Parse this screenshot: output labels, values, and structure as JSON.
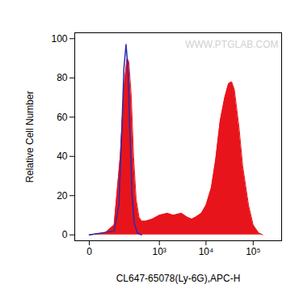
{
  "chart_data": {
    "type": "area",
    "x_label": "CL647-65078(Ly-6G),APC-H",
    "y_label": "Relative Cell Number",
    "xlim": [
      -35,
      400000
    ],
    "xticks": [
      0,
      {
        "value": 1000,
        "label": "10³"
      },
      {
        "value": 10000,
        "label": "10⁴"
      },
      {
        "value": 100000,
        "label": "10⁵"
      }
    ],
    "ylim": [
      -3,
      103
    ],
    "yticks": [
      0,
      20,
      40,
      60,
      80,
      100
    ],
    "grid": false,
    "annotations": [
      {
        "text": "WWW.PTGLAB.COM"
      }
    ],
    "series": [
      {
        "type": "area",
        "color": "#e8141b",
        "x": [
          0,
          40,
          80,
          120,
          150,
          180,
          200,
          230,
          260,
          300,
          350,
          400,
          500,
          700,
          1000,
          1500,
          2000,
          3000,
          4000,
          5000,
          6000,
          8000,
          10000,
          13000,
          16000,
          20000,
          25000,
          30000,
          35000,
          40000,
          50000,
          60000,
          80000,
          100000,
          130000,
          160000
        ],
        "values": [
          0,
          1,
          5,
          40,
          75,
          90,
          88,
          70,
          40,
          18,
          9,
          7,
          7,
          8,
          10,
          11,
          10,
          11,
          9,
          8,
          9,
          11,
          15,
          24,
          38,
          58,
          70,
          77,
          78,
          74,
          55,
          35,
          15,
          5,
          1,
          0
        ]
      },
      {
        "type": "line",
        "color": "#2b2bb0",
        "x": [
          0,
          80,
          110,
          130,
          150,
          170,
          190,
          210,
          240,
          270,
          320,
          400
        ],
        "values": [
          0,
          2,
          15,
          50,
          85,
          97,
          85,
          55,
          20,
          6,
          1,
          0
        ]
      }
    ]
  }
}
